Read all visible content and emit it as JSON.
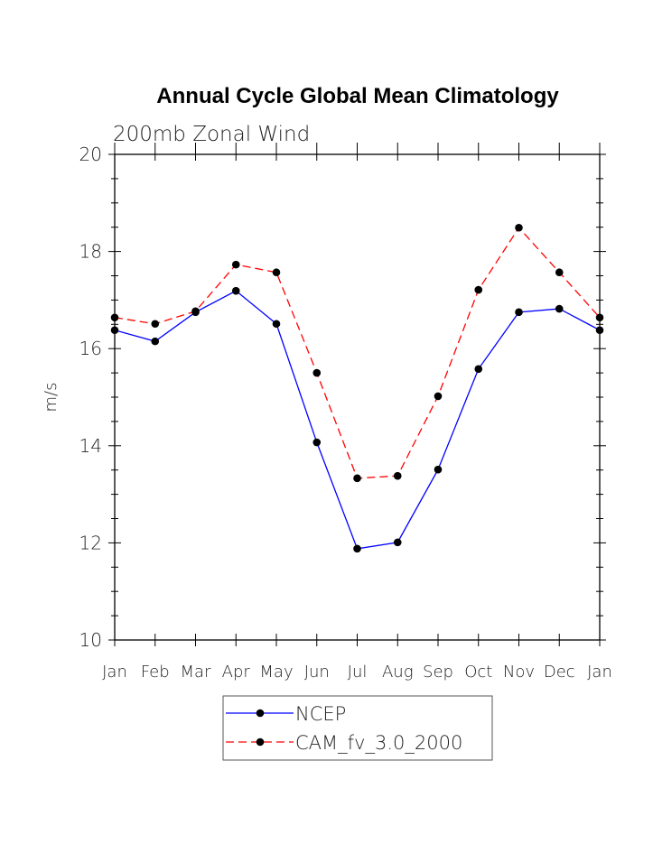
{
  "chart_data": {
    "type": "line",
    "title": "Annual Cycle Global Mean Climatology",
    "subtitle": "200mb Zonal Wind",
    "xlabel": "",
    "ylabel": "m/s",
    "ylim": [
      10,
      20
    ],
    "yticks": [
      "10",
      "12",
      "14",
      "16",
      "18",
      "20"
    ],
    "categories": [
      "Jan",
      "Feb",
      "Mar",
      "Apr",
      "May",
      "Jun",
      "Jul",
      "Aug",
      "Sep",
      "Oct",
      "Nov",
      "Dec",
      "Jan"
    ],
    "grid": false,
    "legend_position": "bottom-center",
    "series": [
      {
        "name": "NCEP",
        "color": "#0000ff",
        "dash": "solid",
        "values": [
          16.38,
          16.15,
          16.75,
          17.19,
          16.51,
          14.07,
          11.88,
          12.01,
          13.51,
          15.58,
          16.75,
          16.82,
          16.38
        ]
      },
      {
        "name": "CAM_fv_3.0_2000",
        "color": "#ff0000",
        "dash": "dashed",
        "values": [
          16.64,
          16.51,
          16.77,
          17.73,
          17.57,
          15.5,
          13.33,
          13.38,
          15.02,
          17.21,
          18.49,
          17.57,
          16.64
        ]
      }
    ]
  }
}
